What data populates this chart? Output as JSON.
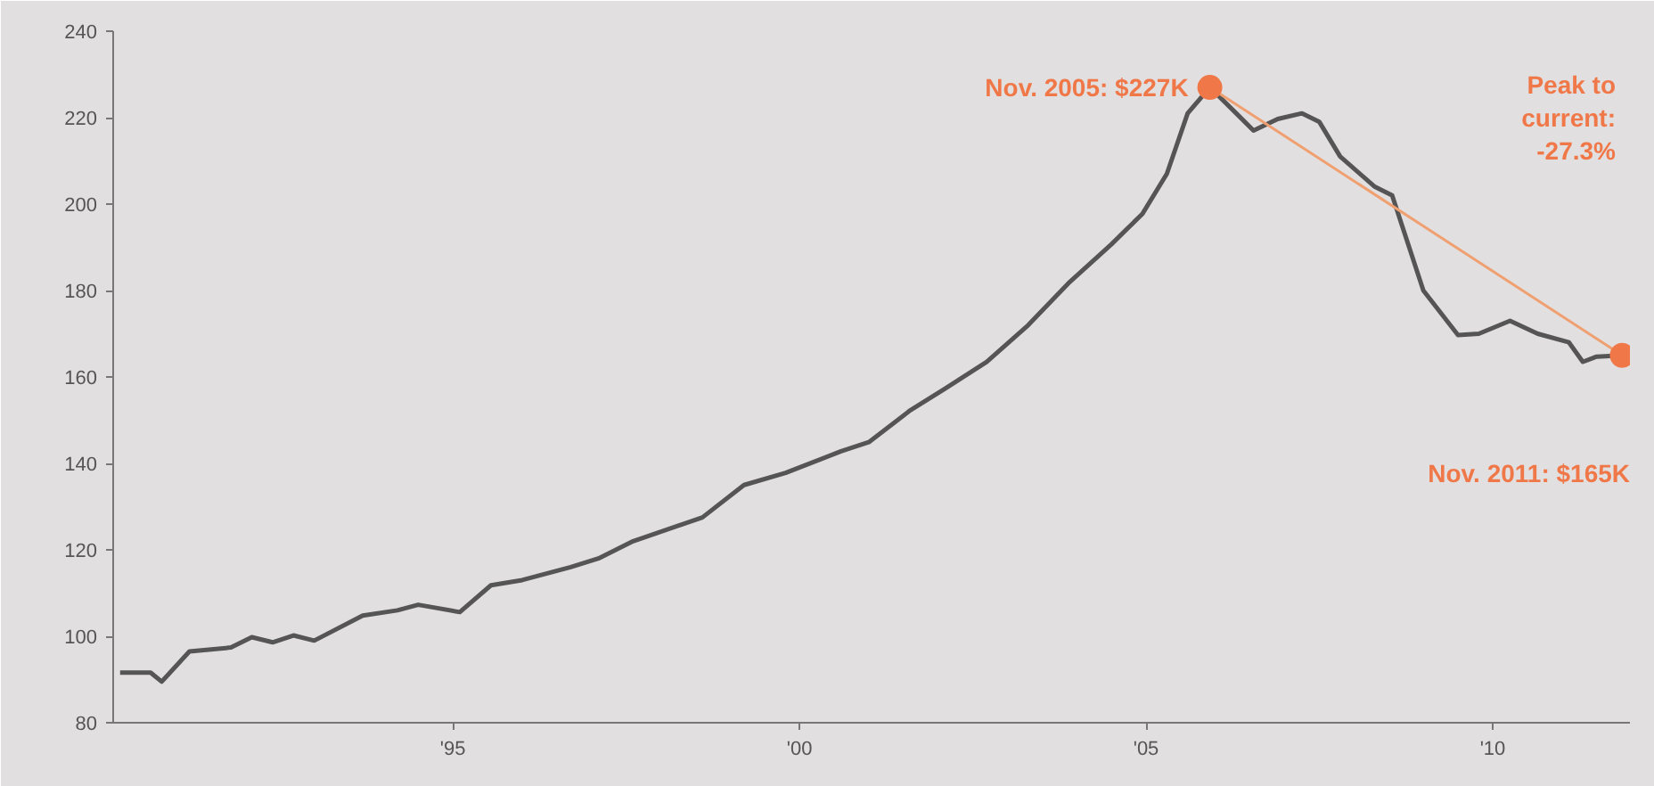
{
  "chart_data": {
    "type": "line",
    "xlim": [
      1990.1,
      2011.98
    ],
    "ylim": [
      80,
      240
    ],
    "xticks": [
      {
        "value": 1995,
        "label": "'95"
      },
      {
        "value": 2000,
        "label": "'00"
      },
      {
        "value": 2005,
        "label": "'05"
      },
      {
        "value": 2010,
        "label": "'10"
      }
    ],
    "yticks": [
      80,
      100,
      120,
      140,
      160,
      180,
      200,
      220,
      240
    ],
    "grid": false,
    "series": [
      {
        "color": "#555555",
        "x": [
          1990.2,
          1990.64,
          1990.8,
          1991.2,
          1991.8,
          1992.1,
          1992.4,
          1992.7,
          1993.0,
          1993.7,
          1994.2,
          1994.5,
          1995.1,
          1995.55,
          1996.0,
          1996.7,
          1997.1,
          1997.6,
          1998.6,
          1999.2,
          1999.8,
          2000.6,
          2001.0,
          2001.6,
          2002.1,
          2002.7,
          2003.3,
          2003.9,
          2004.5,
          2004.95,
          2005.3,
          2005.6,
          2005.92,
          2006.3,
          2006.55,
          2006.9,
          2007.25,
          2007.5,
          2007.8,
          2008.3,
          2008.55,
          2009.0,
          2009.5,
          2009.8,
          2010.25,
          2010.65,
          2011.1,
          2011.3,
          2011.5,
          2011.87
        ],
        "values": [
          91.6,
          91.6,
          89.5,
          96.5,
          97.4,
          99.8,
          98.6,
          100.2,
          99,
          104.8,
          106,
          107.3,
          105.6,
          111.8,
          113,
          116,
          118,
          122,
          127.5,
          135,
          137.8,
          142.8,
          144.9,
          152.3,
          157.3,
          163.5,
          172,
          182,
          190.7,
          197.8,
          207,
          221,
          227,
          221,
          217,
          219.7,
          221,
          219,
          211,
          204,
          202,
          180,
          169.7,
          170,
          173,
          170,
          168,
          163.5,
          164.7,
          165
        ]
      },
      {
        "type": "line",
        "color": "#f0a070",
        "x": [
          2005.92,
          2011.87
        ],
        "values": [
          227,
          165
        ]
      },
      {
        "type": "scatter",
        "color": "#f07848",
        "marker": "circle",
        "x": [
          2005.92,
          2011.87
        ],
        "values": [
          227,
          165
        ]
      }
    ],
    "annotations": [
      {
        "text": "Nov. 2005: $227K",
        "x": 2005.92,
        "y": 227
      },
      "Nov. 2011: $165K",
      "Peak to\ncurrent:\n-27.3%"
    ]
  }
}
